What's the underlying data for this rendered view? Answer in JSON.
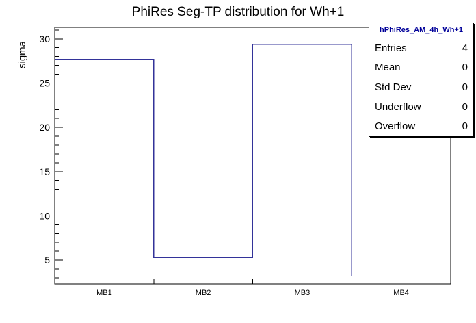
{
  "chart_data": {
    "type": "bar",
    "style": "root-step-histogram",
    "title": "PhiRes Seg-TP distribution for Wh+1",
    "categories": [
      "MB1",
      "MB2",
      "MB3",
      "MB4"
    ],
    "values": [
      27.7,
      5.3,
      29.4,
      3.2
    ],
    "xlabel": "",
    "ylabel": "sigma",
    "ylim": [
      2.3,
      31.3
    ],
    "yticks": [
      5,
      10,
      15,
      20,
      25,
      30
    ],
    "minor_tick_step": 1,
    "grid": false,
    "legend": false,
    "line_color": "#333399",
    "frame_color": "#000000"
  },
  "stats_box": {
    "title": "hPhiRes_AM_4h_Wh+1",
    "title_color": "#000099",
    "rows": [
      {
        "label": "Entries",
        "value": "4"
      },
      {
        "label": "Mean",
        "value": "0"
      },
      {
        "label": "Std Dev",
        "value": "0"
      },
      {
        "label": "Underflow",
        "value": "0"
      },
      {
        "label": "Overflow",
        "value": "0"
      }
    ]
  }
}
